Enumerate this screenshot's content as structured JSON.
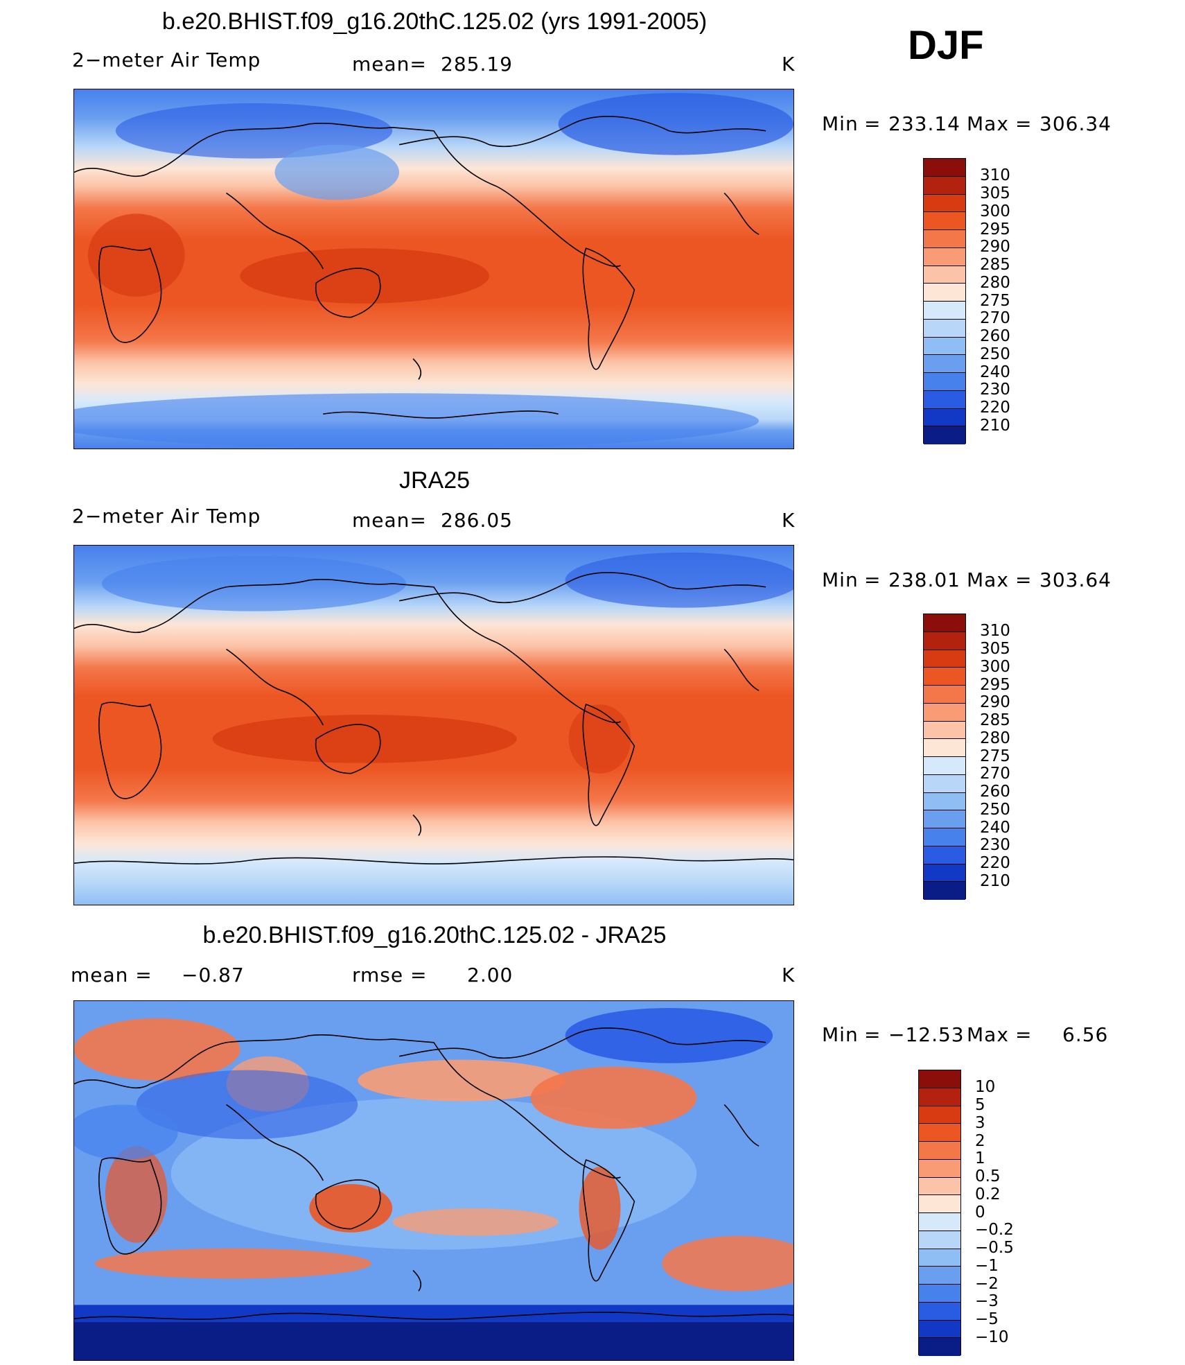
{
  "season": "DJF",
  "units": "K",
  "colors": {
    "warm": [
      "#8b0e0a",
      "#b3210f",
      "#d83b12",
      "#ec5623",
      "#f4774a",
      "#f99c76",
      "#fbc3a7",
      "#fde6d6"
    ],
    "cool": [
      "#d6e9fb",
      "#b8d7f8",
      "#8fbef4",
      "#6a9ff0",
      "#4681ec",
      "#2a5ce3",
      "#1239c6",
      "#0a1c86"
    ],
    "diff_warm": [
      "#8b0e0a",
      "#b3210f",
      "#d83b12",
      "#ec5623",
      "#f4774a",
      "#f99c76",
      "#fbc3a7",
      "#fde6d6"
    ],
    "diff_cool": [
      "#d6e9fb",
      "#b8d7f8",
      "#8fbef4",
      "#6a9ff0",
      "#4681ec",
      "#2a5ce3",
      "#1239c6",
      "#0a1c86"
    ]
  },
  "panels": [
    {
      "title": "b.e20.BHIST.f09_g16.20thC.125.02 (yrs 1991-2005)",
      "left_label": "2−meter Air Temp",
      "stat_label": "mean=",
      "stat_value": "285.19",
      "units": "K",
      "min_label": "Min",
      "min_value": "233.14",
      "max_label": "Max",
      "max_value": "306.34",
      "legend": [
        "310",
        "305",
        "300",
        "295",
        "290",
        "285",
        "280",
        "275",
        "270",
        "260",
        "250",
        "240",
        "230",
        "220",
        "210"
      ]
    },
    {
      "title": "JRA25",
      "left_label": "2−meter Air Temp",
      "stat_label": "mean=",
      "stat_value": "286.05",
      "units": "K",
      "min_label": "Min",
      "min_value": "238.01",
      "max_label": "Max",
      "max_value": "303.64",
      "legend": [
        "310",
        "305",
        "300",
        "295",
        "290",
        "285",
        "280",
        "275",
        "270",
        "260",
        "250",
        "240",
        "230",
        "220",
        "210"
      ]
    },
    {
      "title": "b.e20.BHIST.f09_g16.20thC.125.02 - JRA25",
      "left_label": "mean =",
      "left_value": "−0.87",
      "stat_label": "rmse =",
      "stat_value": "2.00",
      "units": "K",
      "min_label": "Min",
      "min_value": "−12.53",
      "max_label": "Max",
      "max_value": "6.56",
      "legend": [
        "10",
        "5",
        "3",
        "2",
        "1",
        "0.5",
        "0.2",
        "0",
        "−0.2",
        "−0.5",
        "−1",
        "−2",
        "−3",
        "−5",
        "−10"
      ]
    }
  ]
}
